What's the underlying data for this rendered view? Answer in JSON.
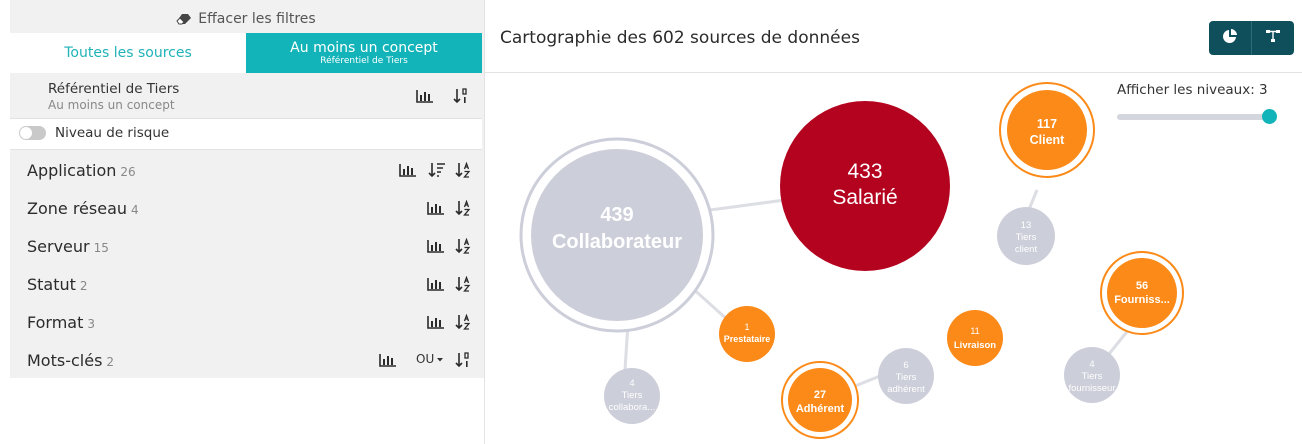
{
  "filters": {
    "clear_label": "Effacer les filtres",
    "tabs": {
      "all_sources": "Toutes les sources",
      "at_least_one": "Au moins un concept",
      "at_least_one_sub": "Référentiel de Tiers"
    },
    "referential": {
      "title": "Référentiel de Tiers",
      "subtitle": "Au moins un concept"
    },
    "risk_toggle": {
      "label": "Niveau de risque",
      "on": false
    },
    "facets": [
      {
        "label": "Application",
        "count": "26"
      },
      {
        "label": "Zone réseau",
        "count": "4"
      },
      {
        "label": "Serveur",
        "count": "15"
      },
      {
        "label": "Statut",
        "count": "2"
      },
      {
        "label": "Format",
        "count": "3"
      },
      {
        "label": "Mots-clés",
        "count": "2",
        "operator": "OU"
      }
    ]
  },
  "main": {
    "title": "Cartographie des 602 sources de données",
    "levels_label": "Afficher les niveaux: 3",
    "levels_value": 3,
    "view_buttons": [
      "pie-chart-icon",
      "hierarchy-icon"
    ]
  },
  "graph": {
    "nodes": [
      {
        "id": "collaborateur",
        "count": "439",
        "label": "Collaborateur",
        "kind": "grey-ringed"
      },
      {
        "id": "salarie",
        "count": "433",
        "label": "Salarié",
        "kind": "red"
      },
      {
        "id": "client",
        "count": "117",
        "label": "Client",
        "kind": "orange-ringed"
      },
      {
        "id": "tiers-client",
        "count": "13",
        "label": "Tiers client",
        "kind": "grey"
      },
      {
        "id": "fournisseur",
        "count": "56",
        "label": "Fourniss...",
        "kind": "orange-ringed"
      },
      {
        "id": "tiers-fournisseur",
        "count": "4",
        "label": "Tiers fournisseur",
        "kind": "grey"
      },
      {
        "id": "prestataire",
        "count": "1",
        "label": "Prestataire",
        "kind": "orange"
      },
      {
        "id": "tiers-collaborateur",
        "count": "4",
        "label": "Tiers collabora...",
        "kind": "grey"
      },
      {
        "id": "adherent",
        "count": "27",
        "label": "Adhérent",
        "kind": "orange-ringed"
      },
      {
        "id": "tiers-adherent",
        "count": "6",
        "label": "Tiers adhérent",
        "kind": "grey"
      },
      {
        "id": "livraison",
        "count": "11",
        "label": "Livraison",
        "kind": "orange"
      }
    ],
    "colors": {
      "orange": "#fb8a18",
      "red": "#b4031f",
      "grey": "#ccced9",
      "teal": "#12b4b9",
      "dark_teal": "#0f4f5c"
    }
  }
}
